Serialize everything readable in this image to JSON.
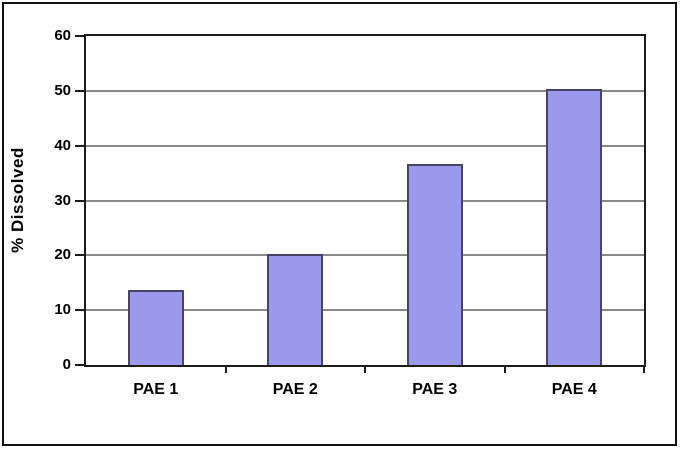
{
  "figure": {
    "background": "#ffffff",
    "border_color": "#111111"
  },
  "chart_data": {
    "type": "bar",
    "categories": [
      "PAE 1",
      "PAE 2",
      "PAE 3",
      "PAE 4"
    ],
    "values": [
      13.6,
      20.2,
      36.7,
      50.3
    ],
    "title": "",
    "xlabel": "",
    "ylabel": "% Dissolved",
    "ylim": [
      0,
      60
    ],
    "yticks": [
      0,
      10,
      20,
      30,
      40,
      50,
      60
    ],
    "grid": true,
    "legend": false,
    "colors": {
      "bar_fill": "#9a99ec",
      "bar_border": "#45456b",
      "gridline": "#8a8a8a",
      "axis": "#1c1c1c",
      "text": "#000000"
    }
  }
}
